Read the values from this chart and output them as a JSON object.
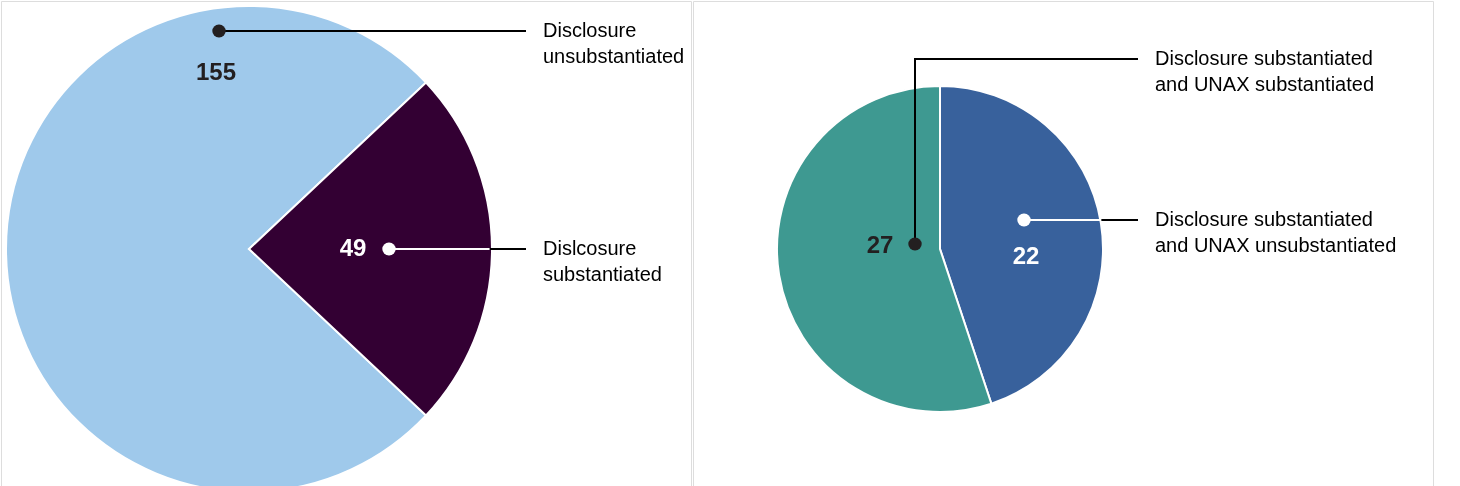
{
  "chart_data": [
    {
      "type": "pie",
      "categories": [
        "Disclosure unsubstantiated",
        "Dislcosure substantiated"
      ],
      "values": [
        155,
        49
      ],
      "colors": [
        "#9fc9eb",
        "#330033"
      ],
      "data_labels": true,
      "legend": false
    },
    {
      "type": "pie",
      "categories": [
        "Disclosure substantiated and UNAX unsubstantiated",
        "Disclosure substantiated and UNAX substantiated"
      ],
      "values": [
        22,
        27
      ],
      "colors": [
        "#38619c",
        "#3e9991"
      ],
      "data_labels": true,
      "legend": false
    }
  ]
}
